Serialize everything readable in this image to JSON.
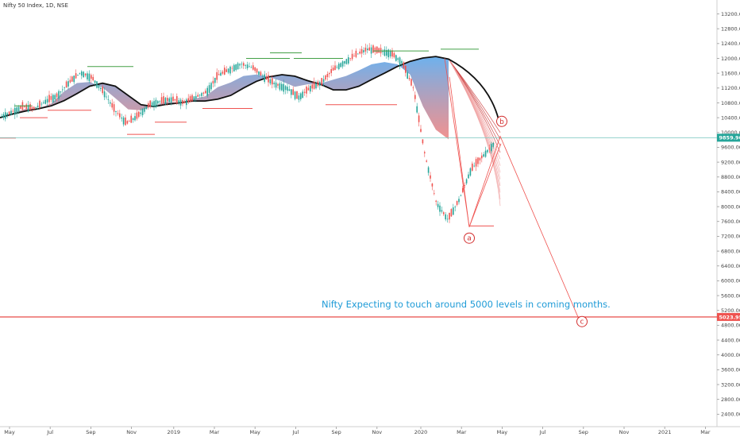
{
  "chart_data": {
    "type": "line",
    "title": "Nifty 50 Index, 1D, NSE",
    "y_axis": {
      "ticks": [
        2400,
        2800,
        3200,
        3600,
        4000,
        4400,
        4800,
        5200,
        5600,
        6000,
        6400,
        6800,
        7200,
        7600,
        8000,
        8400,
        8800,
        9200,
        9600,
        10000,
        10400,
        10800,
        11200,
        11600,
        12000,
        12400,
        12800,
        13200
      ],
      "range": [
        2000,
        13350
      ],
      "position": "right"
    },
    "x_axis": {
      "ticks": [
        "May",
        "Jul",
        "Sep",
        "Nov",
        "2019",
        "Mar",
        "May",
        "Jul",
        "Sep",
        "Nov",
        "2020",
        "Mar",
        "May",
        "Jul",
        "Sep",
        "Nov",
        "2021",
        "Mar"
      ]
    },
    "series": [
      {
        "values": [
          10420,
          10550,
          10700,
          10650,
          10850,
          11000,
          11350,
          11620,
          11480,
          11100,
          10600,
          10250,
          10450,
          10750,
          10850,
          10900,
          10800,
          10950,
          11100,
          11550,
          11700,
          11850,
          11750,
          11500,
          11300,
          11200,
          10950,
          11200,
          11350,
          11700,
          11900,
          12100,
          12250,
          12200,
          12150,
          11900,
          11200,
          9400,
          8100,
          7650,
          8200,
          9000,
          9350,
          9700
        ]
      },
      {
        "values": [
          10400,
          10500,
          10580,
          10640,
          10720,
          10860,
          11050,
          11250,
          11330,
          11250,
          11000,
          10750,
          10700,
          10760,
          10800,
          10850,
          10850,
          10900,
          11000,
          11200,
          11380,
          11500,
          11560,
          11520,
          11400,
          11300,
          11150,
          11150,
          11250,
          11430,
          11600,
          11780,
          11920,
          12010,
          12050,
          11980
        ]
      }
    ],
    "annotations": {
      "note": "Nifty Expecting to touch around 5000 levels in coming months.",
      "wave_labels": [
        {
          "label": "a",
          "value": 7150
        },
        {
          "label": "b",
          "value": 10300
        },
        {
          "label": "c",
          "value": 4900
        }
      ],
      "price_tags": [
        {
          "value": "9859.90",
          "color": "#26a69a"
        },
        {
          "value": "5023.95",
          "color": "#ef5350"
        }
      ]
    },
    "grid": false,
    "colors": {
      "up": "#26a69a",
      "down": "#ef5350",
      "ribbon_high": "#1e88e5",
      "ribbon_low": "#e53935",
      "ma": "#111111",
      "note": "#1e9bd7"
    }
  }
}
